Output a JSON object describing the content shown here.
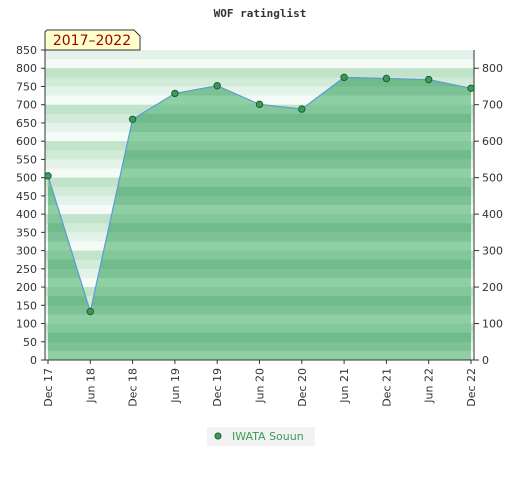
{
  "chart_data": {
    "type": "area",
    "title": "WOF ratinglist",
    "period_label": "2017–2022",
    "categories": [
      "Dec 17",
      "Jun 18",
      "Dec 18",
      "Jun 19",
      "Dec 19",
      "Jun 20",
      "Dec 20",
      "Jun 21",
      "Dec 21",
      "Jun 22",
      "Dec 22"
    ],
    "series": [
      {
        "name": "IWATA Souun",
        "values": [
          505,
          133,
          660,
          731,
          752,
          701,
          688,
          775,
          772,
          769,
          745
        ]
      }
    ],
    "y_left_ticks": [
      0,
      50,
      100,
      150,
      200,
      250,
      300,
      350,
      400,
      450,
      500,
      550,
      600,
      650,
      700,
      750,
      800,
      850
    ],
    "y_right_ticks": [
      0,
      100,
      200,
      300,
      400,
      500,
      600,
      700,
      800
    ],
    "ylim": [
      0,
      850
    ],
    "grid": true,
    "legend_position": "bottom-center",
    "colors": {
      "fill": "#7cc296",
      "line": "#5b9bd5",
      "marker": "#3e9a58",
      "badge_bg": "#ffffcc",
      "badge_text": "#9c0000",
      "legend_text": "#3e9a58"
    }
  }
}
